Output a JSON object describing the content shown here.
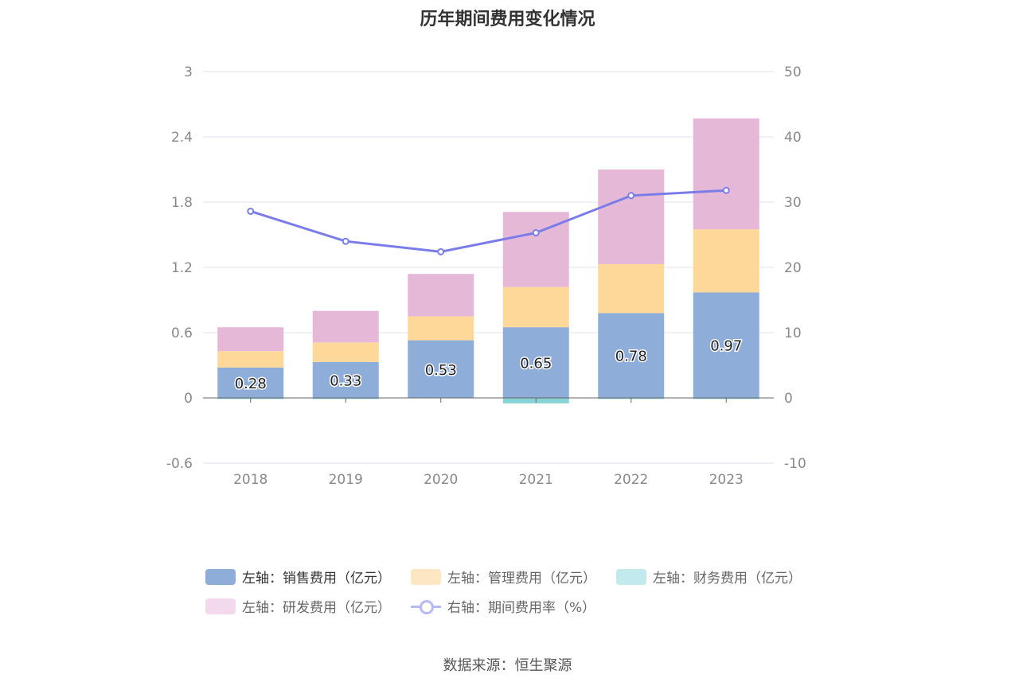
{
  "title": "历年期间费用变化情况",
  "source": "数据来源：恒生聚源",
  "legend": {
    "sales": "左轴：销售费用（亿元）",
    "admin": "左轴：管理费用（亿元）",
    "finance": "左轴：财务费用（亿元）",
    "rnd": "左轴：研发费用（亿元）",
    "rate": "右轴：期间费用率（%）"
  },
  "colors": {
    "sales": "#8eadd9",
    "admin": "#fed899",
    "finance": "#88d3d5",
    "rnd": "#e5b8d8",
    "rate": "#7a7de8",
    "axis": "#666666",
    "grid": "#e0e3ef",
    "tick": "#888888"
  },
  "chart_data": {
    "type": "bar",
    "stacked": true,
    "categories": [
      "2018",
      "2019",
      "2020",
      "2021",
      "2022",
      "2023"
    ],
    "left_axis": {
      "ticks": [
        "-0.6",
        "0",
        "0.6",
        "1.2",
        "1.8",
        "2.4",
        "3"
      ],
      "range": [
        -0.6,
        3
      ]
    },
    "right_axis": {
      "ticks": [
        "-10",
        "0",
        "10",
        "20",
        "30",
        "40",
        "50"
      ],
      "range": [
        -10,
        50
      ]
    },
    "series": [
      {
        "key": "sales",
        "name": "左轴：销售费用（亿元）",
        "axis": "left",
        "values": [
          0.28,
          0.33,
          0.53,
          0.65,
          0.78,
          0.97
        ],
        "labels": [
          "0.28",
          "0.33",
          "0.53",
          "0.65",
          "0.78",
          "0.97"
        ]
      },
      {
        "key": "admin",
        "name": "左轴：管理费用（亿元）",
        "axis": "left",
        "values": [
          0.15,
          0.18,
          0.22,
          0.37,
          0.45,
          0.58
        ]
      },
      {
        "key": "finance",
        "name": "左轴：财务费用（亿元）",
        "axis": "left",
        "values": [
          -0.01,
          -0.01,
          0.0,
          -0.05,
          -0.01,
          -0.01
        ]
      },
      {
        "key": "rnd",
        "name": "左轴：研发费用（亿元）",
        "axis": "left",
        "values": [
          0.22,
          0.29,
          0.39,
          0.69,
          0.87,
          1.02
        ]
      },
      {
        "key": "rate",
        "name": "右轴：期间费用率（%）",
        "axis": "right",
        "type": "line",
        "values": [
          28.6,
          24.0,
          22.4,
          25.3,
          31.0,
          31.8
        ]
      }
    ],
    "legend_position": "bottom",
    "grid": true
  }
}
